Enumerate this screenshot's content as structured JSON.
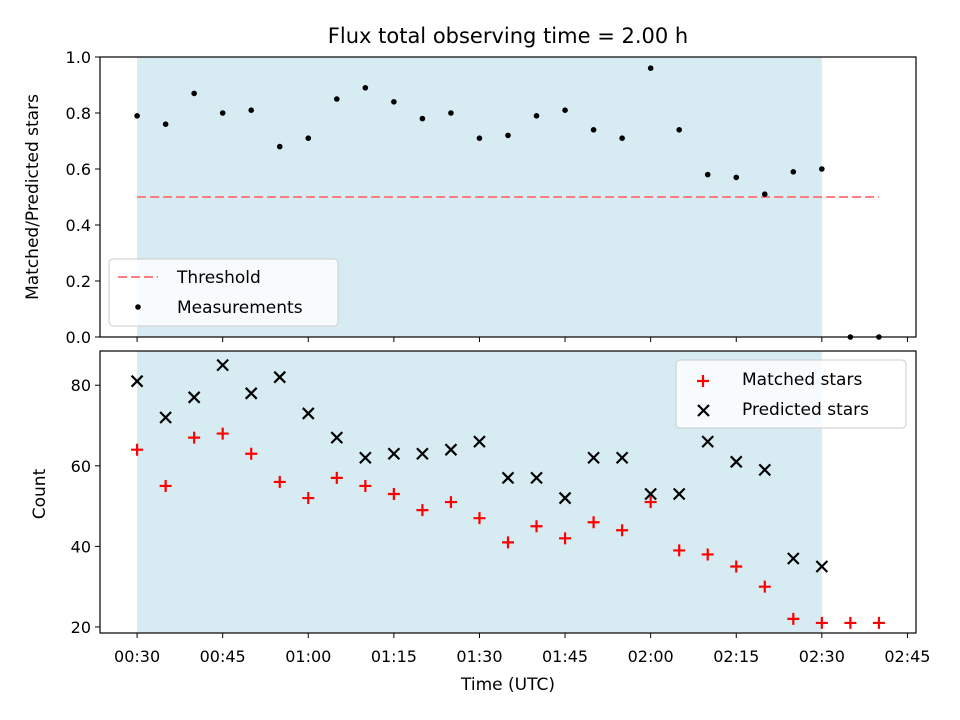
{
  "chart_data": [
    {
      "type": "scatter",
      "title": "Flux total observing time = 2.00 h",
      "ylabel": "Matched/Predicted stars",
      "ylim": [
        0,
        1.0
      ],
      "yticks": [
        "0.0",
        "0.2",
        "0.4",
        "0.6",
        "0.8",
        "1.0"
      ],
      "xlim_minutes": [
        23.5,
        166.5
      ],
      "grid": false,
      "legend_position": "lower-left",
      "observing_window": {
        "start": "00:30",
        "end": "02:30",
        "color": "#add8e6"
      },
      "threshold": {
        "name": "Threshold",
        "value": 0.5,
        "x_start": "00:30",
        "x_end": "02:40",
        "color": "#ff7f7f"
      },
      "series": [
        {
          "name": "Measurements",
          "color": "#000000",
          "marker": "dot",
          "x": [
            "00:30",
            "00:35",
            "00:40",
            "00:45",
            "00:50",
            "00:55",
            "01:00",
            "01:05",
            "01:10",
            "01:15",
            "01:20",
            "01:25",
            "01:30",
            "01:35",
            "01:40",
            "01:45",
            "01:50",
            "01:55",
            "02:00",
            "02:05",
            "02:10",
            "02:15",
            "02:20",
            "02:25",
            "02:30",
            "02:35",
            "02:40"
          ],
          "values": [
            0.79,
            0.76,
            0.87,
            0.8,
            0.81,
            0.68,
            0.71,
            0.85,
            0.89,
            0.84,
            0.78,
            0.8,
            0.71,
            0.72,
            0.79,
            0.81,
            0.74,
            0.71,
            0.96,
            0.74,
            0.58,
            0.57,
            0.51,
            0.59,
            0.6,
            0.0,
            0.0
          ]
        }
      ]
    },
    {
      "type": "scatter",
      "xlabel": "Time (UTC)",
      "ylabel": "Count",
      "ylim": [
        18.5,
        88.5
      ],
      "yticks": [
        "20",
        "40",
        "60",
        "80"
      ],
      "xticks": [
        "00:30",
        "00:45",
        "01:00",
        "01:15",
        "01:30",
        "01:45",
        "02:00",
        "02:15",
        "02:30",
        "02:45"
      ],
      "xlim_minutes": [
        23.5,
        166.5
      ],
      "grid": false,
      "legend_position": "top-right",
      "observing_window": {
        "start": "00:30",
        "end": "02:30",
        "color": "#add8e6"
      },
      "series": [
        {
          "name": "Matched stars",
          "color": "#ff0000",
          "marker": "plus",
          "x": [
            "00:30",
            "00:35",
            "00:40",
            "00:45",
            "00:50",
            "00:55",
            "01:00",
            "01:05",
            "01:10",
            "01:15",
            "01:20",
            "01:25",
            "01:30",
            "01:35",
            "01:40",
            "01:45",
            "01:50",
            "01:55",
            "02:00",
            "02:05",
            "02:10",
            "02:15",
            "02:20",
            "02:25",
            "02:30",
            "02:35",
            "02:40"
          ],
          "values": [
            64,
            55,
            67,
            68,
            63,
            56,
            52,
            57,
            55,
            53,
            49,
            51,
            47,
            41,
            45,
            42,
            46,
            44,
            51,
            39,
            38,
            35,
            30,
            22,
            21,
            21,
            21
          ]
        },
        {
          "name": "Predicted stars",
          "color": "#000000",
          "marker": "x",
          "x": [
            "00:30",
            "00:35",
            "00:40",
            "00:45",
            "00:50",
            "00:55",
            "01:00",
            "01:05",
            "01:10",
            "01:15",
            "01:20",
            "01:25",
            "01:30",
            "01:35",
            "01:40",
            "01:45",
            "01:50",
            "01:55",
            "02:00",
            "02:05",
            "02:10",
            "02:15",
            "02:20",
            "02:25",
            "02:30"
          ],
          "values": [
            81,
            72,
            77,
            85,
            78,
            82,
            73,
            67,
            62,
            63,
            63,
            64,
            66,
            57,
            57,
            52,
            62,
            62,
            53,
            53,
            66,
            61,
            59,
            37,
            35
          ]
        }
      ]
    }
  ]
}
